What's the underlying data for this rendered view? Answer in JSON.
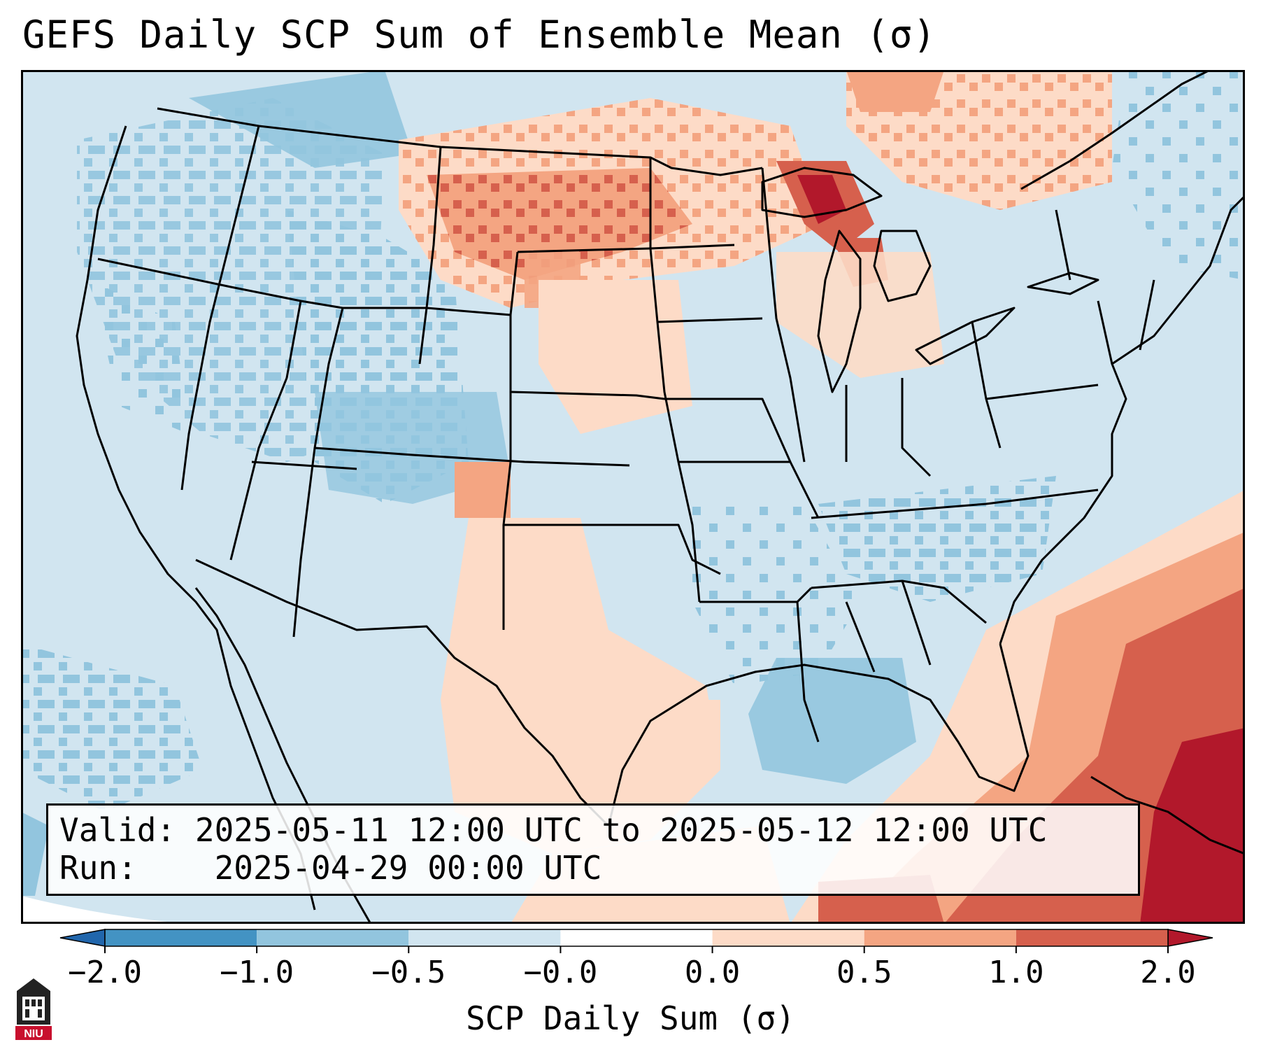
{
  "title": "GEFS Daily SCP Sum of Ensemble Mean (σ)",
  "info": {
    "valid_label": "Valid:",
    "valid_value": "2025-05-11 12:00 UTC to 2025-05-12 12:00 UTC",
    "run_label": "Run:",
    "run_value": "2025-04-29 00:00 UTC"
  },
  "colorbar": {
    "label": "SCP Daily Sum (σ)",
    "ticks": [
      "−2.0",
      "−1.0",
      "−0.5",
      "−0.0",
      "0.0",
      "0.5",
      "1.0",
      "2.0"
    ],
    "bins": [
      {
        "from": -2.0,
        "to": -1.0,
        "color": "#4393c3"
      },
      {
        "from": -1.0,
        "to": -0.5,
        "color": "#92c5de"
      },
      {
        "from": -0.5,
        "to": 0.0,
        "color": "#d1e5f0"
      },
      {
        "from": 0.0,
        "to": 0.0,
        "color": "#ffffff"
      },
      {
        "from": 0.0,
        "to": 0.5,
        "color": "#fddbc7"
      },
      {
        "from": 0.5,
        "to": 1.0,
        "color": "#f4a582"
      },
      {
        "from": 1.0,
        "to": 2.0,
        "color": "#d6604d"
      }
    ],
    "under_color": "#2166ac",
    "over_color": "#b2182b",
    "extend": "both"
  },
  "map": {
    "region": "Contiguous United States",
    "projection": "Lambert conformal",
    "background_value_color": "#d1e5f0",
    "features": [
      "coastlines",
      "country borders",
      "state borders"
    ]
  },
  "logo": {
    "text": "NIU"
  }
}
